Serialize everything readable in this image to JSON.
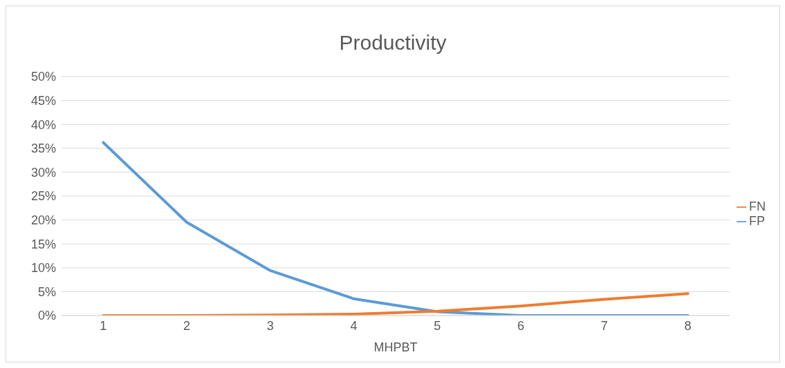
{
  "chart_data": {
    "type": "line",
    "title": "Productivity",
    "xlabel": "MHPBT",
    "categories": [
      "1",
      "2",
      "3",
      "4",
      "5",
      "6",
      "7",
      "8"
    ],
    "series": [
      {
        "name": "FP",
        "color": "#5b9bd5",
        "values": [
          36.2,
          19.5,
          9.4,
          3.5,
          0.8,
          0,
          0,
          0
        ]
      },
      {
        "name": "FN",
        "color": "#ed7d31",
        "values": [
          0,
          0,
          0.1,
          0.3,
          0.9,
          2.0,
          3.4,
          4.6
        ]
      }
    ],
    "ylim": [
      0,
      50
    ],
    "yticks": [
      {
        "value": 0,
        "label": "0%"
      },
      {
        "value": 5,
        "label": "5%"
      },
      {
        "value": 10,
        "label": "10%"
      },
      {
        "value": 15,
        "label": "15%"
      },
      {
        "value": 20,
        "label": "20%"
      },
      {
        "value": 25,
        "label": "25%"
      },
      {
        "value": 30,
        "label": "30%"
      },
      {
        "value": 35,
        "label": "35%"
      },
      {
        "value": 40,
        "label": "40%"
      },
      {
        "value": 45,
        "label": "45%"
      },
      {
        "value": 50,
        "label": "50%"
      }
    ],
    "grid": "y",
    "legend": "right",
    "marker": "none",
    "line_style": "solid"
  }
}
